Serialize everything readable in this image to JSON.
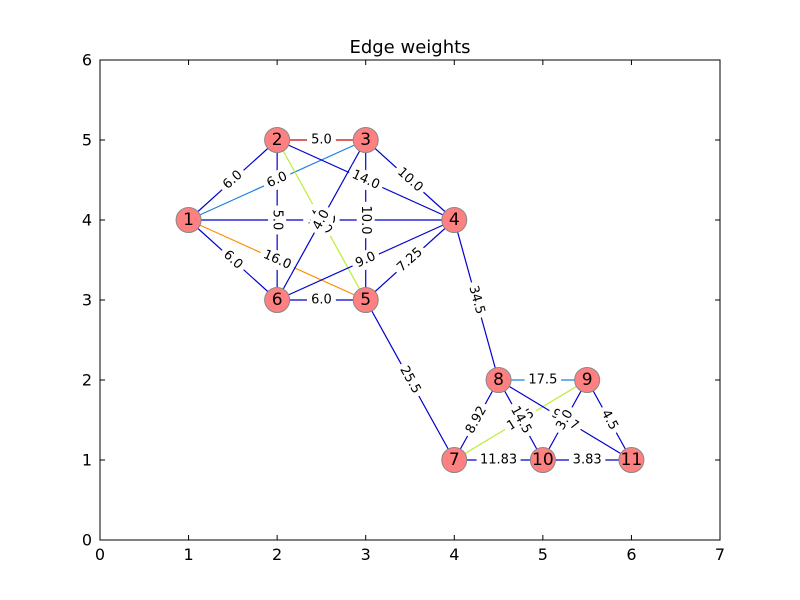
{
  "title": "Edge weights",
  "xlim": [
    0,
    7
  ],
  "ylim": [
    0,
    6
  ],
  "xticks": [
    "0",
    "1",
    "2",
    "3",
    "4",
    "5",
    "6",
    "7"
  ],
  "yticks": [
    "0",
    "1",
    "2",
    "3",
    "4",
    "5",
    "6"
  ],
  "node_color": "#ff8080",
  "node_edge_color": "#888888",
  "nodes": [
    {
      "id": "1",
      "x": 1,
      "y": 4
    },
    {
      "id": "2",
      "x": 2,
      "y": 5
    },
    {
      "id": "3",
      "x": 3,
      "y": 5
    },
    {
      "id": "4",
      "x": 4,
      "y": 4
    },
    {
      "id": "5",
      "x": 3,
      "y": 3
    },
    {
      "id": "6",
      "x": 2,
      "y": 3
    },
    {
      "id": "7",
      "x": 4,
      "y": 1
    },
    {
      "id": "8",
      "x": 4.5,
      "y": 2
    },
    {
      "id": "9",
      "x": 5.5,
      "y": 2
    },
    {
      "id": "10",
      "x": 5,
      "y": 1
    },
    {
      "id": "11",
      "x": 6,
      "y": 1
    }
  ],
  "edges": [
    {
      "from": "1",
      "to": "2",
      "label": "6.0",
      "color": "#0000cc"
    },
    {
      "from": "1",
      "to": "3",
      "label": "6.0",
      "color": "#1e7fe6"
    },
    {
      "from": "1",
      "to": "4",
      "label": "18.0",
      "color": "#0000cc"
    },
    {
      "from": "1",
      "to": "5",
      "label": "16.0",
      "color": "#ff8c00"
    },
    {
      "from": "1",
      "to": "6",
      "label": "6.0",
      "color": "#0000cc"
    },
    {
      "from": "2",
      "to": "3",
      "label": "5.0",
      "color": "#cc0000"
    },
    {
      "from": "2",
      "to": "4",
      "label": "14.0",
      "color": "#0000cc"
    },
    {
      "from": "2",
      "to": "5",
      "label": "13.0",
      "color": "#b8ee30"
    },
    {
      "from": "2",
      "to": "6",
      "label": "5.0",
      "color": "#0000cc"
    },
    {
      "from": "3",
      "to": "4",
      "label": "10.0",
      "color": "#0000cc"
    },
    {
      "from": "3",
      "to": "5",
      "label": "10.0",
      "color": "#0000cc"
    },
    {
      "from": "3",
      "to": "6",
      "label": "4.0",
      "color": "#0000cc"
    },
    {
      "from": "4",
      "to": "5",
      "label": "7.25",
      "color": "#0000cc"
    },
    {
      "from": "4",
      "to": "6",
      "label": "9.0",
      "color": "#0000cc"
    },
    {
      "from": "4",
      "to": "8",
      "label": "34.5",
      "color": "#0000cc"
    },
    {
      "from": "5",
      "to": "6",
      "label": "6.0",
      "color": "#0000cc"
    },
    {
      "from": "5",
      "to": "7",
      "label": "25.5",
      "color": "#0000cc"
    },
    {
      "from": "7",
      "to": "8",
      "label": "8.92",
      "color": "#0000cc"
    },
    {
      "from": "7",
      "to": "9",
      "label": "11.5",
      "color": "#b8ee30"
    },
    {
      "from": "7",
      "to": "10",
      "label": "11.83",
      "color": "#0000cc"
    },
    {
      "from": "8",
      "to": "9",
      "label": "17.5",
      "color": "#1e7fe6"
    },
    {
      "from": "8",
      "to": "10",
      "label": "14.5",
      "color": "#0000cc"
    },
    {
      "from": "8",
      "to": "11",
      "label": "9.67",
      "color": "#0000cc"
    },
    {
      "from": "9",
      "to": "10",
      "label": "3.0",
      "color": "#0000cc"
    },
    {
      "from": "9",
      "to": "11",
      "label": "4.5",
      "color": "#0000cc"
    },
    {
      "from": "10",
      "to": "11",
      "label": "3.83",
      "color": "#0000cc"
    }
  ]
}
